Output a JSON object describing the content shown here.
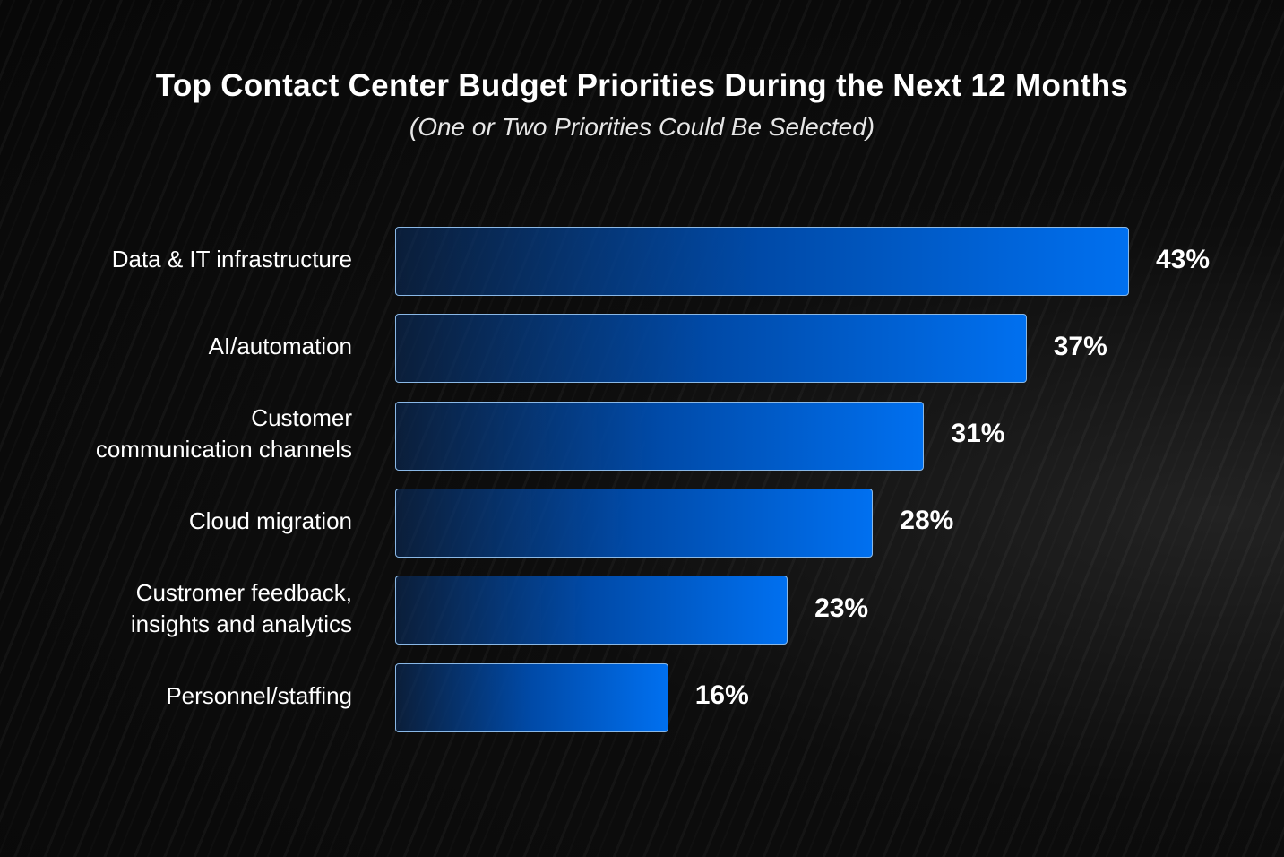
{
  "chart_data": {
    "type": "bar",
    "orientation": "horizontal",
    "title": "Top Contact Center Budget Priorities During the Next 12 Months",
    "subtitle": "(One or Two Priorities Could Be Selected)",
    "categories": [
      "Data & IT infrastructure",
      "AI/automation",
      "Customer communication channels",
      "Cloud migration",
      "Custromer feedback, insights and analytics",
      "Personnel/staffing"
    ],
    "category_lines": [
      [
        "Data & IT infrastructure"
      ],
      [
        "AI/automation"
      ],
      [
        "Customer",
        "communication channels"
      ],
      [
        "Cloud migration"
      ],
      [
        "Custromer feedback,",
        "insights and analytics"
      ],
      [
        "Personnel/staffing"
      ]
    ],
    "values": [
      43,
      37,
      31,
      28,
      23,
      16
    ],
    "labels": [
      "43%",
      "37%",
      "31%",
      "28%",
      "23%",
      "16%"
    ],
    "unit": "%",
    "xlim": [
      0,
      43
    ],
    "grid": false,
    "bar_color": "#0070f0",
    "bar_border_color": "#8ab8e6"
  }
}
